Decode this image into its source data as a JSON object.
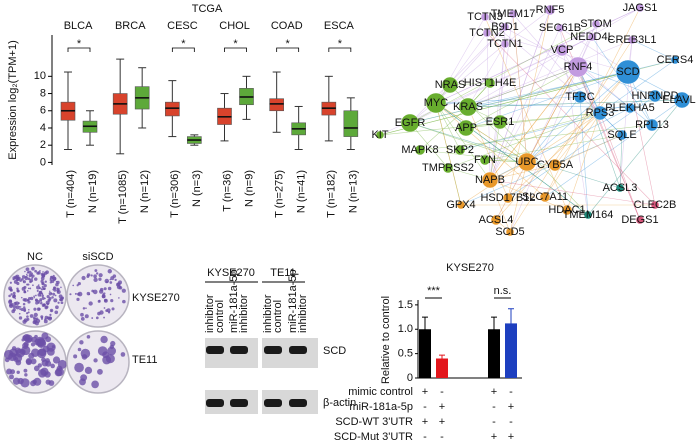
{
  "chart_data": [
    {
      "type": "box",
      "title": "TCGA",
      "y_label": "Expression log₂(TPM+1)",
      "groups": [
        "BLCA",
        "BRCA",
        "CESC",
        "CHOL",
        "COAD",
        "ESCA"
      ],
      "categories": [
        "T (n=404)",
        "N (n=19)",
        "T (n=1085)",
        "N (n=12)",
        "T (n=306)",
        "N (n=3)",
        "T (n=36)",
        "N (n=9)",
        "T (n=275)",
        "N (n=41)",
        "T (n=182)",
        "N (n=13)"
      ],
      "q1": [
        4.9,
        3.5,
        5.6,
        6.2,
        5.4,
        2.2,
        4.4,
        6.7,
        6.0,
        3.2,
        5.5,
        3.0
      ],
      "median": [
        6.0,
        4.2,
        6.8,
        7.5,
        6.3,
        2.6,
        5.3,
        7.6,
        6.8,
        3.9,
        6.3,
        4.0
      ],
      "q3": [
        7.0,
        4.8,
        8.0,
        8.8,
        7.0,
        3.0,
        6.3,
        8.6,
        7.4,
        4.6,
        7.0,
        6.0
      ],
      "whisker_low": [
        1.5,
        2.0,
        1.0,
        4.0,
        3.0,
        2.0,
        2.5,
        5.0,
        3.5,
        1.5,
        2.5,
        1.5
      ],
      "whisker_high": [
        10.5,
        6.0,
        12.0,
        11.0,
        9.5,
        3.2,
        8.0,
        10.0,
        10.5,
        6.5,
        10.0,
        7.5
      ],
      "colors": [
        "#d8432c",
        "#5da93a"
      ],
      "significance": [
        "*",
        null,
        "*",
        "*",
        "*",
        "*"
      ],
      "ylim": [
        -0.3,
        14.8
      ],
      "yticks": [
        0,
        2,
        4,
        6,
        8,
        10
      ]
    },
    {
      "type": "bar",
      "title": "KYSE270",
      "y_label": "Relative to control",
      "values": [
        1.0,
        0.4,
        1.0,
        1.12
      ],
      "errors": [
        0.25,
        0.07,
        0.25,
        0.3
      ],
      "colors": [
        "#000000",
        "#e3161c",
        "#000000",
        "#1d3fbf"
      ],
      "significance": [
        "***",
        "n.s."
      ],
      "condition_labels": [
        "mimic control",
        "miR-181a-5p",
        "SCD-WT 3'UTR",
        "SCD-Mut 3'UTR"
      ],
      "condition_signs": [
        [
          "+",
          "-",
          "+",
          "-"
        ],
        [
          "-",
          "+",
          "-",
          "+"
        ],
        [
          "+",
          "+",
          "-",
          "-"
        ],
        [
          "-",
          "-",
          "+",
          "+"
        ]
      ],
      "ylim": [
        0,
        1.6
      ],
      "yticks": [
        0,
        0.5,
        {
          "value": 1.0,
          "label": "1.0"
        },
        1.5
      ]
    }
  ],
  "network": {
    "nodes": [
      "TCTN3",
      "TCTN2",
      "TCTN1",
      "TMEM17",
      "B9D1",
      "RNF5",
      "SEC61B",
      "NEDD4L",
      "VCP",
      "STOM",
      "RNF4",
      "JAGS1",
      "CREB3L1",
      "MYC",
      "KRAS",
      "EGFR",
      "APP",
      "ESR1",
      "NRAS",
      "HIST1H4E",
      "MAPK8",
      "SKP2",
      "TMPRSS2",
      "FYN",
      "KIT",
      "SCD",
      "ELAVL1",
      "HNRNPD",
      "RPL13",
      "RPS3",
      "PLEKHA5",
      "TFRC",
      "SQLE",
      "CERS4",
      "UBC",
      "NAPB",
      "CYB5A",
      "SLC7A11",
      "HSD17B12",
      "ACSL4",
      "HDAC1",
      "GPX4",
      "SCD5",
      "TMEM164",
      "ACSL3",
      "CLEC2B",
      "DEGS1"
    ]
  },
  "colony_assay": {
    "conditions": [
      "NC",
      "siSCD"
    ],
    "cell_lines": [
      "KYSE270",
      "TE11"
    ]
  },
  "western_blot": {
    "cell_lines": [
      "KYSE270",
      "TE11"
    ],
    "lanes": [
      [
        "inhibitor",
        "control"
      ],
      [
        "miR-181a-5p",
        "inhibitor"
      ]
    ],
    "proteins": [
      "SCD",
      "β-actin"
    ]
  }
}
